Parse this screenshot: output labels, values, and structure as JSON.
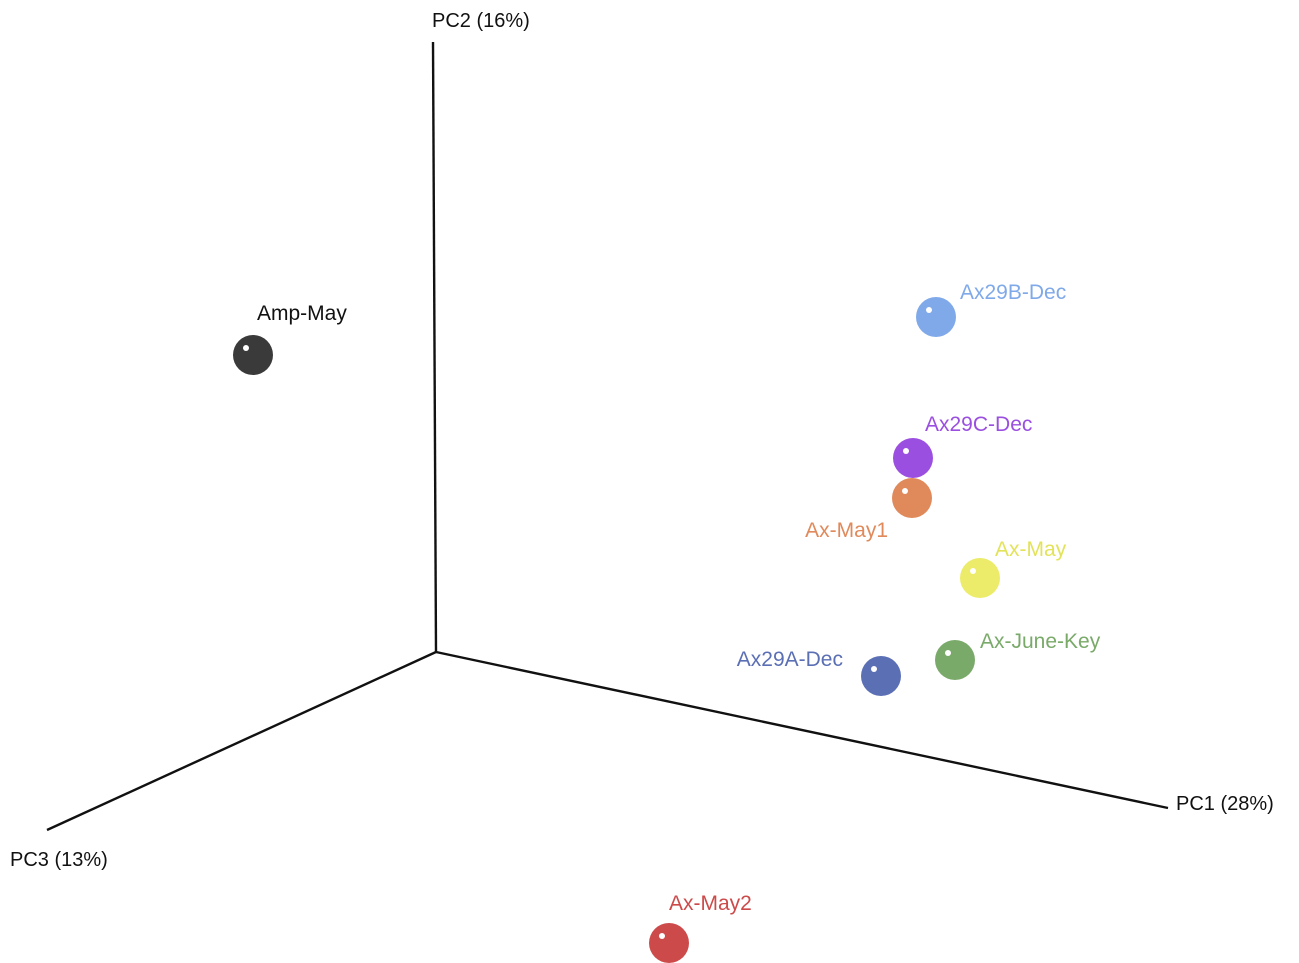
{
  "chart_data": {
    "type": "scatter",
    "projection": "3d",
    "axes": {
      "x": {
        "label": "PC1 (28%)"
      },
      "y": {
        "label": "PC2 (16%)"
      },
      "z": {
        "label": "PC3 (13%)"
      }
    },
    "grid": false,
    "legend": "none",
    "points": [
      {
        "name": "Ax29B-Dec",
        "color": "#7fa9e8"
      },
      {
        "name": "Ax29C-Dec",
        "color": "#9a4fe0"
      },
      {
        "name": "Ax-May1",
        "color": "#e0895a"
      },
      {
        "name": "Ax-May",
        "color": "#ecec6a"
      },
      {
        "name": "Ax-June-Key",
        "color": "#7aaa6a"
      },
      {
        "name": "Ax29A-Dec",
        "color": "#5b6fb5"
      },
      {
        "name": "Amp-May",
        "color": "#3a3a3a"
      },
      {
        "name": "Ax-May2",
        "color": "#cc4a4a"
      }
    ]
  }
}
